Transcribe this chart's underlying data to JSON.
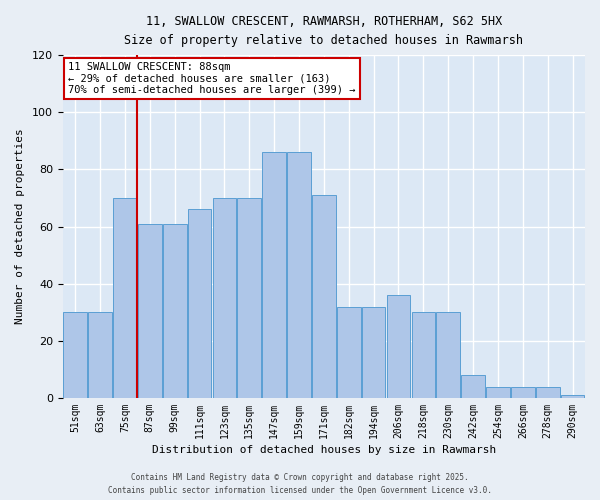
{
  "title_line1": "11, SWALLOW CRESCENT, RAWMARSH, ROTHERHAM, S62 5HX",
  "title_line2": "Size of property relative to detached houses in Rawmarsh",
  "xlabel": "Distribution of detached houses by size in Rawmarsh",
  "ylabel": "Number of detached properties",
  "bar_color": "#aec6e8",
  "bar_edge_color": "#5a9fd4",
  "background_color": "#dce8f5",
  "grid_color": "#ffffff",
  "vline_x": 3,
  "vline_color": "#cc0000",
  "annotation_title": "11 SWALLOW CRESCENT: 88sqm",
  "annotation_line1": "← 29% of detached houses are smaller (163)",
  "annotation_line2": "70% of semi-detached houses are larger (399) →",
  "annotation_box_color": "#cc0000",
  "bin_labels": [
    "51sqm",
    "63sqm",
    "75sqm",
    "87sqm",
    "99sqm",
    "111sqm",
    "123sqm",
    "135sqm",
    "147sqm",
    "159sqm",
    "171sqm",
    "182sqm",
    "194sqm",
    "206sqm",
    "218sqm",
    "230sqm",
    "242sqm",
    "254sqm",
    "266sqm",
    "278sqm",
    "290sqm"
  ],
  "bar_heights": [
    30,
    30,
    70,
    61,
    61,
    66,
    70,
    70,
    86,
    86,
    71,
    32,
    32,
    36,
    30,
    30,
    8,
    4,
    4,
    4,
    1
  ],
  "ylim": [
    0,
    120
  ],
  "yticks": [
    0,
    20,
    40,
    60,
    80,
    100,
    120
  ],
  "footer_line1": "Contains HM Land Registry data © Crown copyright and database right 2025.",
  "footer_line2": "Contains public sector information licensed under the Open Government Licence v3.0."
}
